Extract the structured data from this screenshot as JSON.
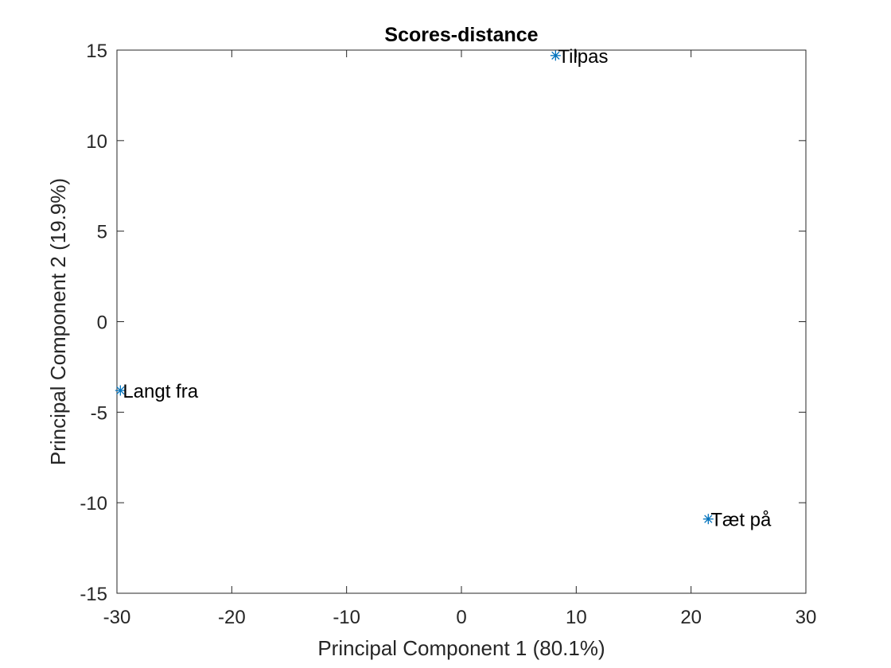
{
  "chart_data": {
    "type": "scatter",
    "title": "Scores-distance",
    "xlabel": "Principal Component 1 (80.1%)",
    "ylabel": "Principal Component 2 (19.9%)",
    "xlim": [
      -30,
      30
    ],
    "ylim": [
      -15,
      15
    ],
    "xticks": [
      -30,
      -20,
      -10,
      0,
      10,
      20,
      30
    ],
    "yticks": [
      -15,
      -10,
      -5,
      0,
      5,
      10,
      15
    ],
    "xtick_labels": [
      "-30",
      "-20",
      "-10",
      "0",
      "10",
      "20",
      "30"
    ],
    "ytick_labels": [
      "-15",
      "-10",
      "-5",
      "0",
      "5",
      "10",
      "15"
    ],
    "grid": false,
    "marker": "asterisk",
    "marker_color": "#0072BD",
    "points": [
      {
        "label": "Langt fra",
        "x": -29.7,
        "y": -3.8
      },
      {
        "label": "Tilpas",
        "x": 8.2,
        "y": 14.7
      },
      {
        "label": "Tæt på",
        "x": 21.5,
        "y": -10.9
      }
    ]
  }
}
